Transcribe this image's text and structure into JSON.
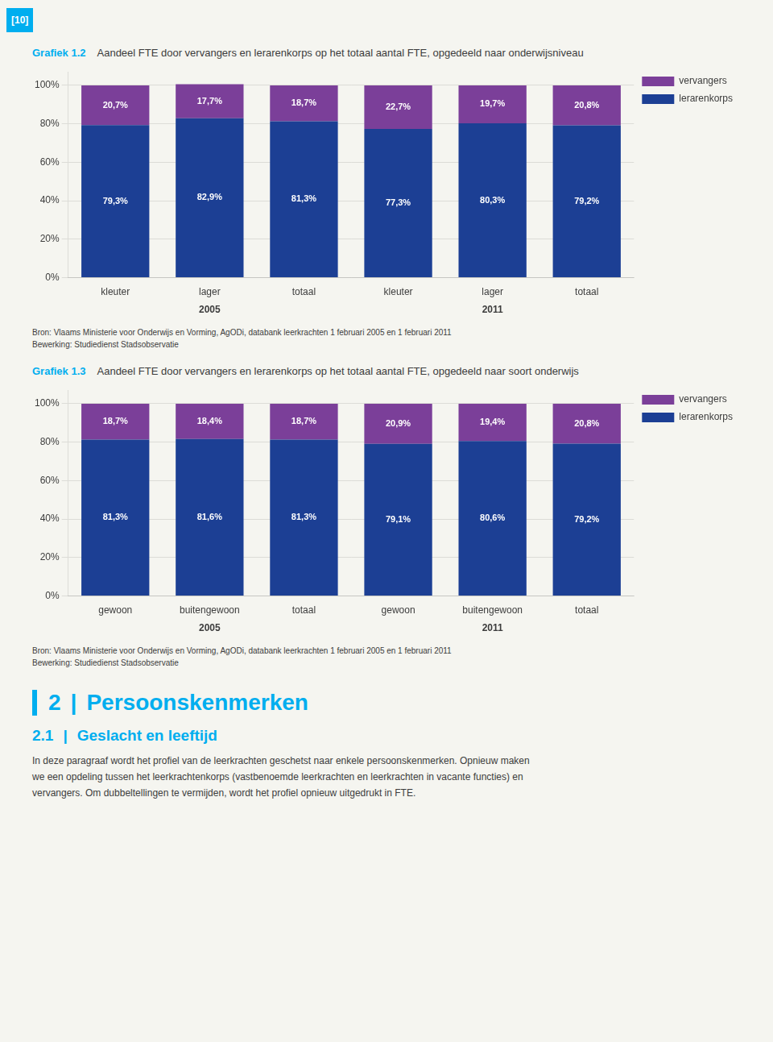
{
  "page_number": "[10]",
  "chart_data": [
    {
      "type": "bar",
      "title": "Grafiek 1.2",
      "subtitle": "Aandeel FTE door vervangers en lerarenkorps op het totaal aantal FTE, opgedeeld naar onderwijsniveau",
      "categories": [
        "kleuter",
        "lager",
        "totaal",
        "kleuter",
        "lager",
        "totaal"
      ],
      "group_labels": [
        "2005",
        "2011"
      ],
      "series": [
        {
          "name": "lerarenkorps",
          "color": "#1c3f94",
          "values": [
            79.3,
            82.9,
            81.3,
            77.3,
            80.3,
            79.2
          ],
          "value_labels": [
            "79,3%",
            "82,9%",
            "81,3%",
            "77,3%",
            "80,3%",
            "79,2%"
          ]
        },
        {
          "name": "vervangers",
          "color": "#7b3f99",
          "values": [
            20.7,
            17.7,
            18.7,
            22.7,
            19.7,
            20.8
          ],
          "value_labels": [
            "20,7%",
            "17,7%",
            "18,7%",
            "22,7%",
            "19,7%",
            "20,8%"
          ]
        }
      ],
      "stacked": true,
      "data_labels": true,
      "ylim": [
        0,
        107
      ],
      "yticks": [
        {
          "value": 0,
          "label": "0%"
        },
        {
          "value": 20,
          "label": "20%"
        },
        {
          "value": 40,
          "label": "40%"
        },
        {
          "value": 60,
          "label": "60%"
        },
        {
          "value": 80,
          "label": "80%"
        },
        {
          "value": 100,
          "label": "100%"
        }
      ],
      "grid": true,
      "legend": "right",
      "annotations": [
        "Bron: Vlaams Ministerie voor Onderwijs en Vorming, AgODi, databank leerkrachten 1 februari 2005 en 1 februari 2011",
        "Bewerking: Studiedienst Stadsobservatie"
      ]
    },
    {
      "type": "bar",
      "title": "Grafiek 1.3",
      "subtitle": "Aandeel FTE door vervangers en lerarenkorps op het totaal aantal FTE, opgedeeld naar soort onderwijs",
      "categories": [
        "gewoon",
        "buitengewoon",
        "totaal",
        "gewoon",
        "buitengewoon",
        "totaal"
      ],
      "group_labels": [
        "2005",
        "2011"
      ],
      "series": [
        {
          "name": "lerarenkorps",
          "color": "#1c3f94",
          "values": [
            81.3,
            81.6,
            81.3,
            79.1,
            80.6,
            79.2
          ],
          "value_labels": [
            "81,3%",
            "81,6%",
            "81,3%",
            "79,1%",
            "80,6%",
            "79,2%"
          ]
        },
        {
          "name": "vervangers",
          "color": "#7b3f99",
          "values": [
            18.7,
            18.4,
            18.7,
            20.9,
            19.4,
            20.8
          ],
          "value_labels": [
            "18,7%",
            "18,4%",
            "18,7%",
            "20,9%",
            "19,4%",
            "20,8%"
          ]
        }
      ],
      "stacked": true,
      "data_labels": true,
      "ylim": [
        0,
        107
      ],
      "yticks": [
        {
          "value": 0,
          "label": "0%"
        },
        {
          "value": 20,
          "label": "20%"
        },
        {
          "value": 40,
          "label": "40%"
        },
        {
          "value": 60,
          "label": "60%"
        },
        {
          "value": 80,
          "label": "80%"
        },
        {
          "value": 100,
          "label": "100%"
        }
      ],
      "grid": true,
      "legend": "right",
      "annotations": [
        "Bron: Vlaams Ministerie voor Onderwijs en Vorming, AgODi, databank leerkrachten 1 februari 2005 en 1 februari 2011",
        "Bewerking: Studiedienst Stadsobservatie"
      ]
    }
  ],
  "section_heading": [
    "2",
    "|",
    "Persoonskenmerken"
  ],
  "subsection_heading": [
    "2.1",
    "|",
    "Geslacht en leeftijd"
  ],
  "body_text": [
    "In deze paragraaf wordt het profiel van de leerkrachten geschetst naar enkele persoonskenmerken. Opnieuw maken",
    "we een opdeling tussen het leerkrachtenkorps (vastbenoemde leerkrachten en leerkrachten in vacante functies) en",
    "vervangers. Om dubbeltellingen te vermijden, wordt het profiel opnieuw uitgedrukt in FTE."
  ]
}
